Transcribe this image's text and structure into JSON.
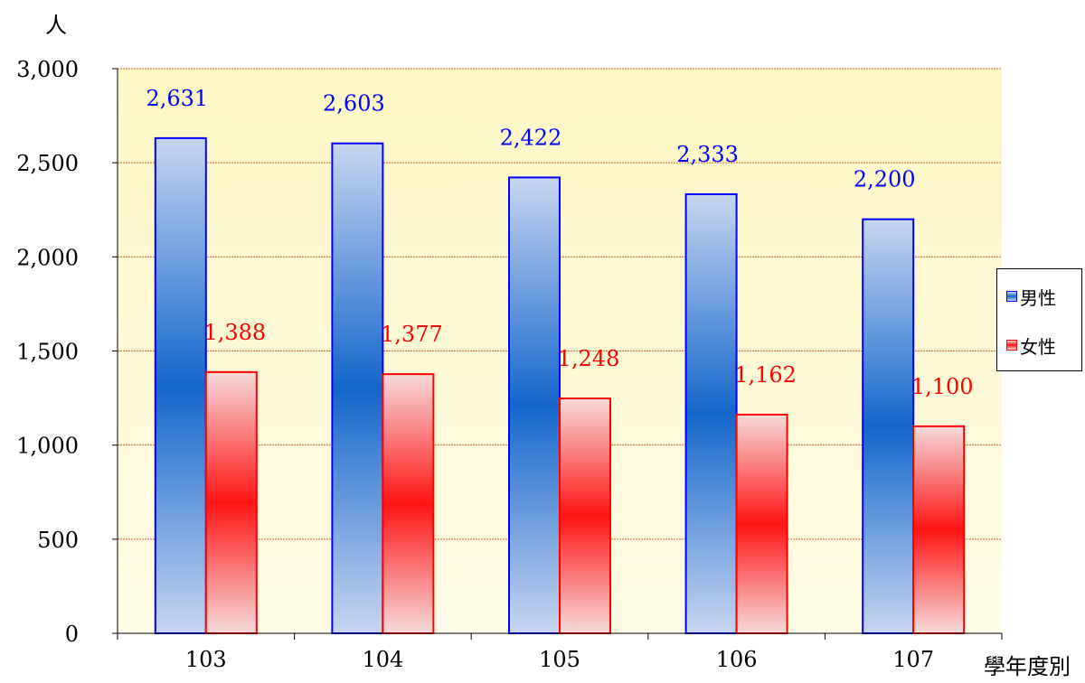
{
  "chart_data": {
    "type": "bar",
    "categories": [
      "103",
      "104",
      "105",
      "106",
      "107"
    ],
    "series": [
      {
        "name": "男性",
        "values": [
          2631,
          2603,
          2422,
          2333,
          2200
        ],
        "color": "#0000ff",
        "label_color": "#0000ff"
      },
      {
        "name": "女性",
        "values": [
          1388,
          1377,
          1248,
          1162,
          1100
        ],
        "color": "#ff0000",
        "label_color": "#ff0000"
      }
    ],
    "data_labels": [
      [
        "2,631",
        "2,603",
        "2,422",
        "2,333",
        "2,200"
      ],
      [
        "1,388",
        "1,377",
        "1,248",
        "1,162",
        "1,100"
      ]
    ],
    "ylabel": "人",
    "xlabel": "學年度別",
    "ylim": [
      0,
      3000
    ],
    "yticks": [
      0,
      500,
      1000,
      1500,
      2000,
      2500,
      3000
    ],
    "ytick_labels": [
      "0",
      "500",
      "1,000",
      "1,500",
      "2,000",
      "2,500",
      "3,000"
    ],
    "grid": true,
    "grid_color": "#cc6633",
    "plot_background": "#ffffcc",
    "legend_position": "right"
  }
}
